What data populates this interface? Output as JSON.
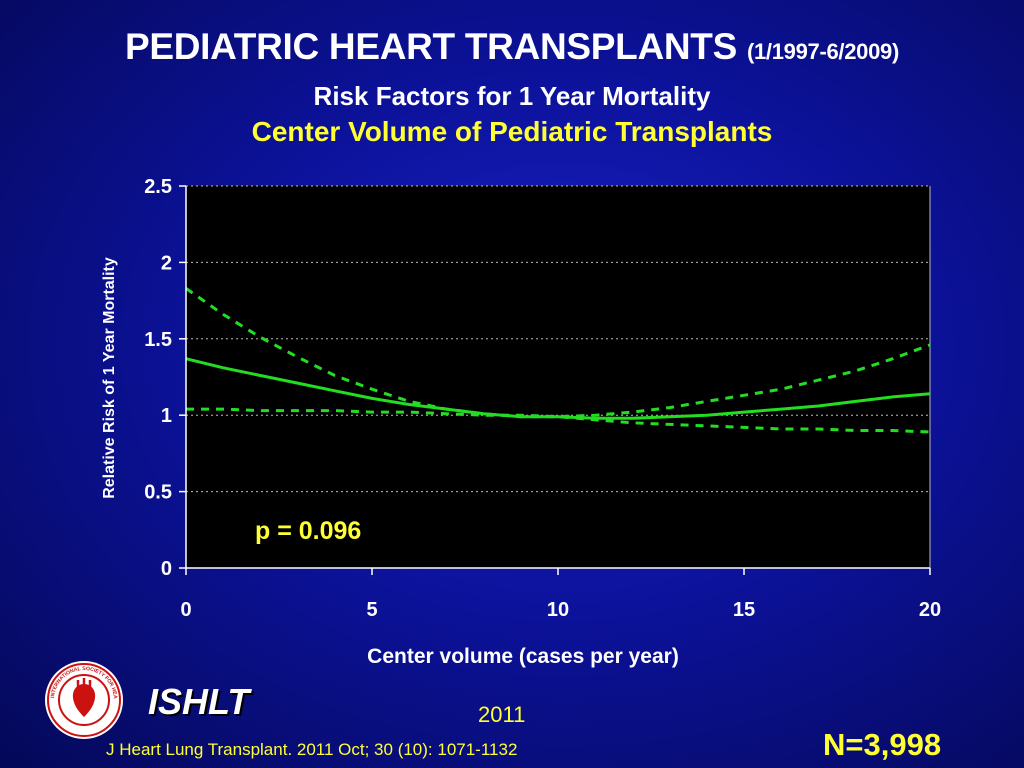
{
  "slide": {
    "title_main": "PEDIATRIC HEART TRANSPLANTS",
    "title_dates": "(1/1997-6/2009)",
    "subtitle": "Risk Factors for 1 Year Mortality",
    "subtitle2": "Center Volume of Pediatric Transplants",
    "org_label": "ISHLT",
    "year": "2011",
    "citation": "J Heart Lung Transplant. 2011 Oct; 30 (10): 1071-1132",
    "n_label": "N=3,998",
    "logo": {
      "icon": "ishlt-seal-icon",
      "text": "INTERNATIONAL SOCIETY FOR HEART & LUNG TRANSPLANTATION"
    }
  },
  "chart_data": {
    "type": "line",
    "title": "",
    "xlabel": "Center volume (cases per year)",
    "ylabel": "Relative Risk of 1 Year Mortality",
    "xlim": [
      0,
      20
    ],
    "ylim": [
      0,
      2.5
    ],
    "x_ticks": [
      "0",
      "5",
      "10",
      "15",
      "20"
    ],
    "y_ticks": [
      "0",
      "0.5",
      "1",
      "1.5",
      "2",
      "2.5"
    ],
    "grid": {
      "horizontal": true,
      "style": "dotted"
    },
    "annotation": "p = 0.096",
    "x": [
      0,
      1,
      2,
      3,
      4,
      5,
      6,
      7,
      8,
      9,
      10,
      11,
      12,
      13,
      14,
      15,
      16,
      17,
      18,
      19,
      20
    ],
    "series": [
      {
        "style": "solid",
        "values": [
          1.37,
          1.31,
          1.26,
          1.21,
          1.16,
          1.11,
          1.07,
          1.04,
          1.01,
          0.99,
          0.99,
          0.98,
          0.98,
          0.99,
          1.0,
          1.02,
          1.04,
          1.06,
          1.09,
          1.12,
          1.14
        ]
      },
      {
        "style": "dashed",
        "values": [
          1.83,
          1.66,
          1.51,
          1.38,
          1.26,
          1.17,
          1.09,
          1.04,
          1.01,
          0.99,
          0.99,
          1.0,
          1.02,
          1.05,
          1.09,
          1.13,
          1.17,
          1.23,
          1.29,
          1.37,
          1.46
        ]
      },
      {
        "style": "dashed",
        "values": [
          1.04,
          1.04,
          1.03,
          1.03,
          1.03,
          1.02,
          1.02,
          1.01,
          1.0,
          1.0,
          0.99,
          0.97,
          0.95,
          0.94,
          0.93,
          0.92,
          0.91,
          0.91,
          0.9,
          0.9,
          0.89
        ]
      }
    ],
    "colors": {
      "lines": "#22dd22",
      "plot_bg": "#000000",
      "annotation": "#ffff33",
      "axis_text": "#ffffff"
    }
  }
}
